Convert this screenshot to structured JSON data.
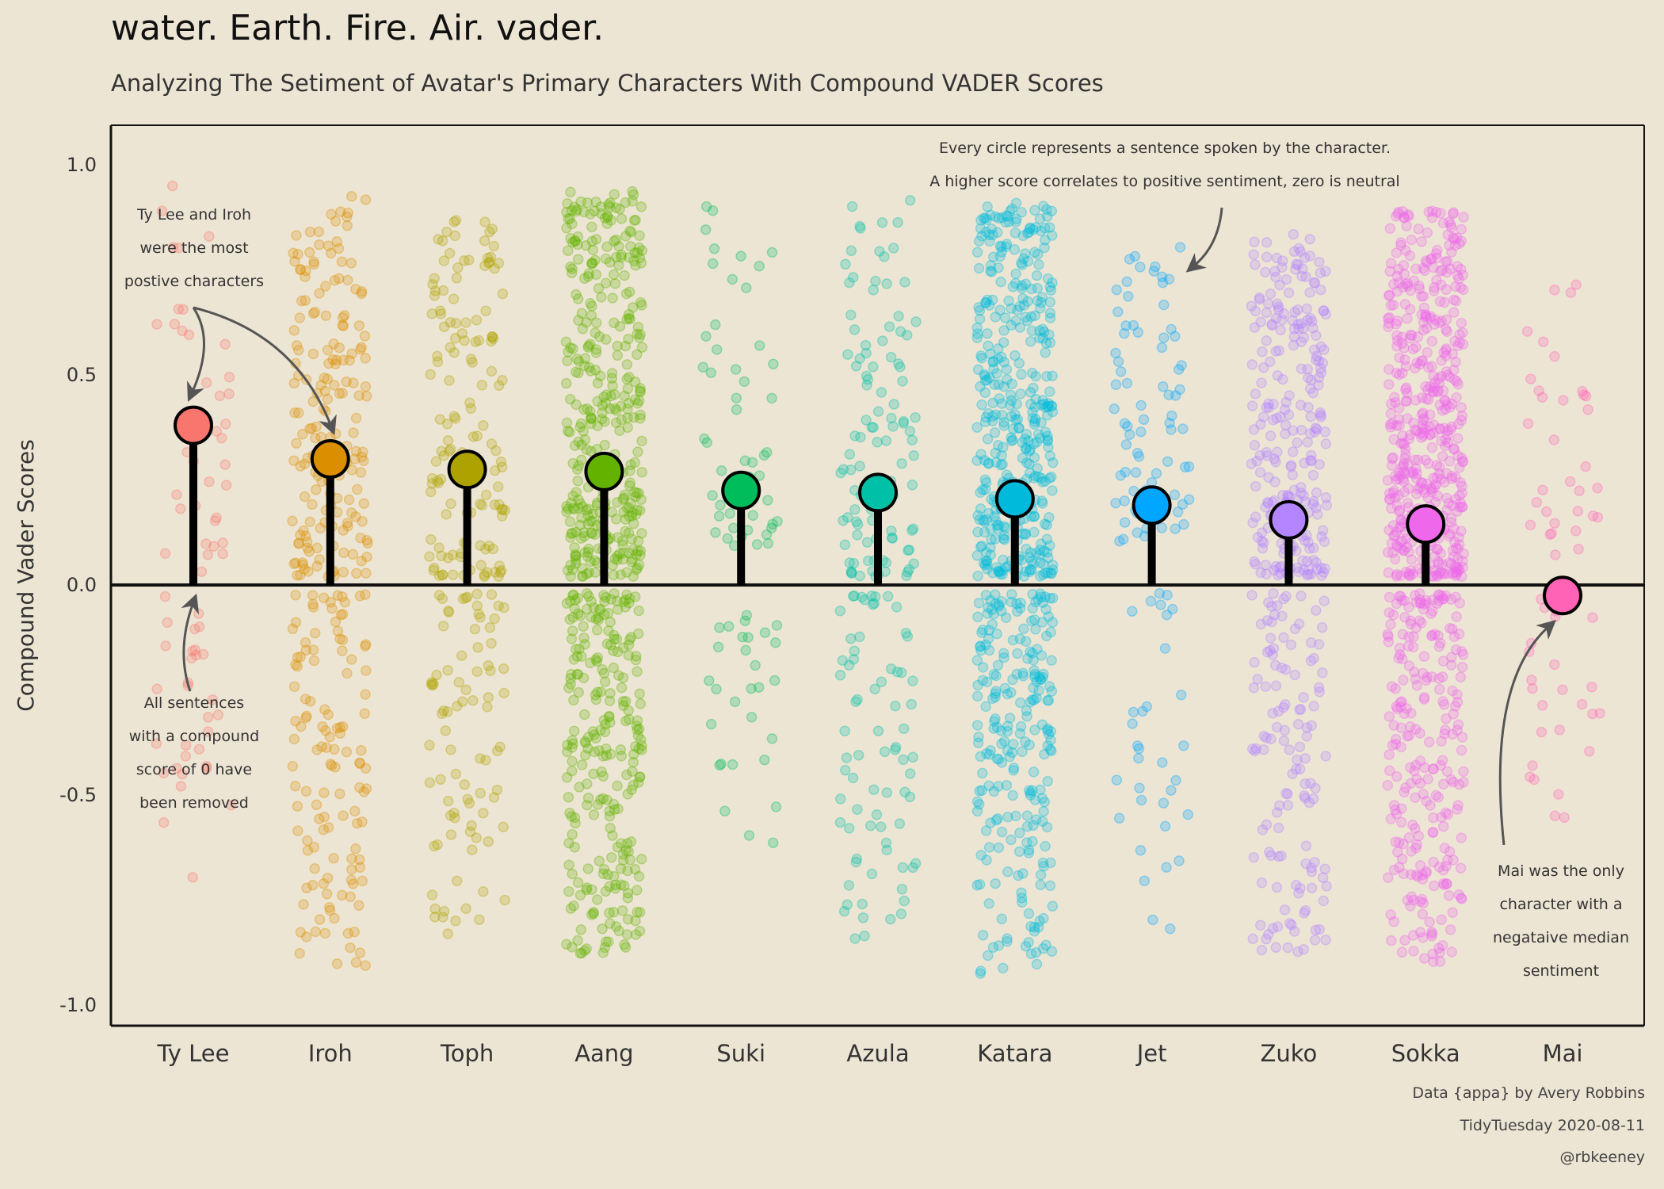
{
  "title": "water. Earth. Fire. Air. vader.",
  "subtitle": "Analyzing The Setiment of Avatar's Primary Characters With Compound VADER Scores",
  "caption": [
    "Data {appa} by Avery Robbins",
    "TidyTuesday 2020-08-11",
    "@rbkeeney"
  ],
  "annotations": {
    "most_positive": [
      "Ty Lee and Iroh",
      "were the most",
      "postive characters"
    ],
    "removed": [
      "All sentences",
      "with a compound",
      "score of 0 have",
      "been removed"
    ],
    "every_circle": [
      "Every circle represents a sentence spoken by the character.",
      "A higher score correlates to positive sentiment, zero is neutral"
    ],
    "mai": [
      "Mai was the only",
      "character with a",
      "negataive median",
      "sentiment"
    ]
  },
  "chart_data": {
    "type": "scatter",
    "variant": "jittered strip plot with median lollipops",
    "ylabel": "Compound Vader Scores",
    "xlabel": "",
    "ylim": [
      -1.05,
      1.1
    ],
    "yticks": [
      "1.0",
      "0.5",
      "0.0",
      "-0.5",
      "-1.0"
    ],
    "ytick_values": [
      1.0,
      0.5,
      0.0,
      -0.5,
      -1.0
    ],
    "categories": [
      "Ty Lee",
      "Iroh",
      "Toph",
      "Aang",
      "Suki",
      "Azula",
      "Katara",
      "Jet",
      "Zuko",
      "Sokka",
      "Mai"
    ],
    "medians": [
      0.38,
      0.3,
      0.275,
      0.27,
      0.225,
      0.22,
      0.205,
      0.19,
      0.155,
      0.145,
      -0.025
    ],
    "colors": [
      "#f8766d",
      "#db8e00",
      "#aea200",
      "#64b200",
      "#00bd5c",
      "#00c1a7",
      "#00badb",
      "#00a6ff",
      "#b385ff",
      "#ef67eb",
      "#ff63b6"
    ],
    "point_counts": [
      70,
      300,
      220,
      620,
      80,
      180,
      640,
      110,
      380,
      720,
      60
    ],
    "range_positive": [
      [
        0.03,
        0.97
      ],
      [
        0.02,
        0.93
      ],
      [
        0.02,
        0.88
      ],
      [
        0.02,
        0.94
      ],
      [
        0.07,
        0.92
      ],
      [
        0.02,
        0.93
      ],
      [
        0.02,
        0.92
      ],
      [
        0.1,
        0.85
      ],
      [
        0.02,
        0.84
      ],
      [
        0.02,
        0.9
      ],
      [
        0.07,
        0.72
      ]
    ],
    "range_negative": [
      [
        -0.7,
        -0.02
      ],
      [
        -0.95,
        -0.02
      ],
      [
        -0.85,
        -0.02
      ],
      [
        -0.88,
        -0.02
      ],
      [
        -0.65,
        -0.07
      ],
      [
        -0.85,
        -0.02
      ],
      [
        -0.93,
        -0.02
      ],
      [
        -0.83,
        -0.02
      ],
      [
        -0.88,
        -0.02
      ],
      [
        -0.9,
        -0.02
      ],
      [
        -0.58,
        -0.03
      ]
    ],
    "grid": false,
    "zero_line": true,
    "point_alpha": 0.25
  }
}
